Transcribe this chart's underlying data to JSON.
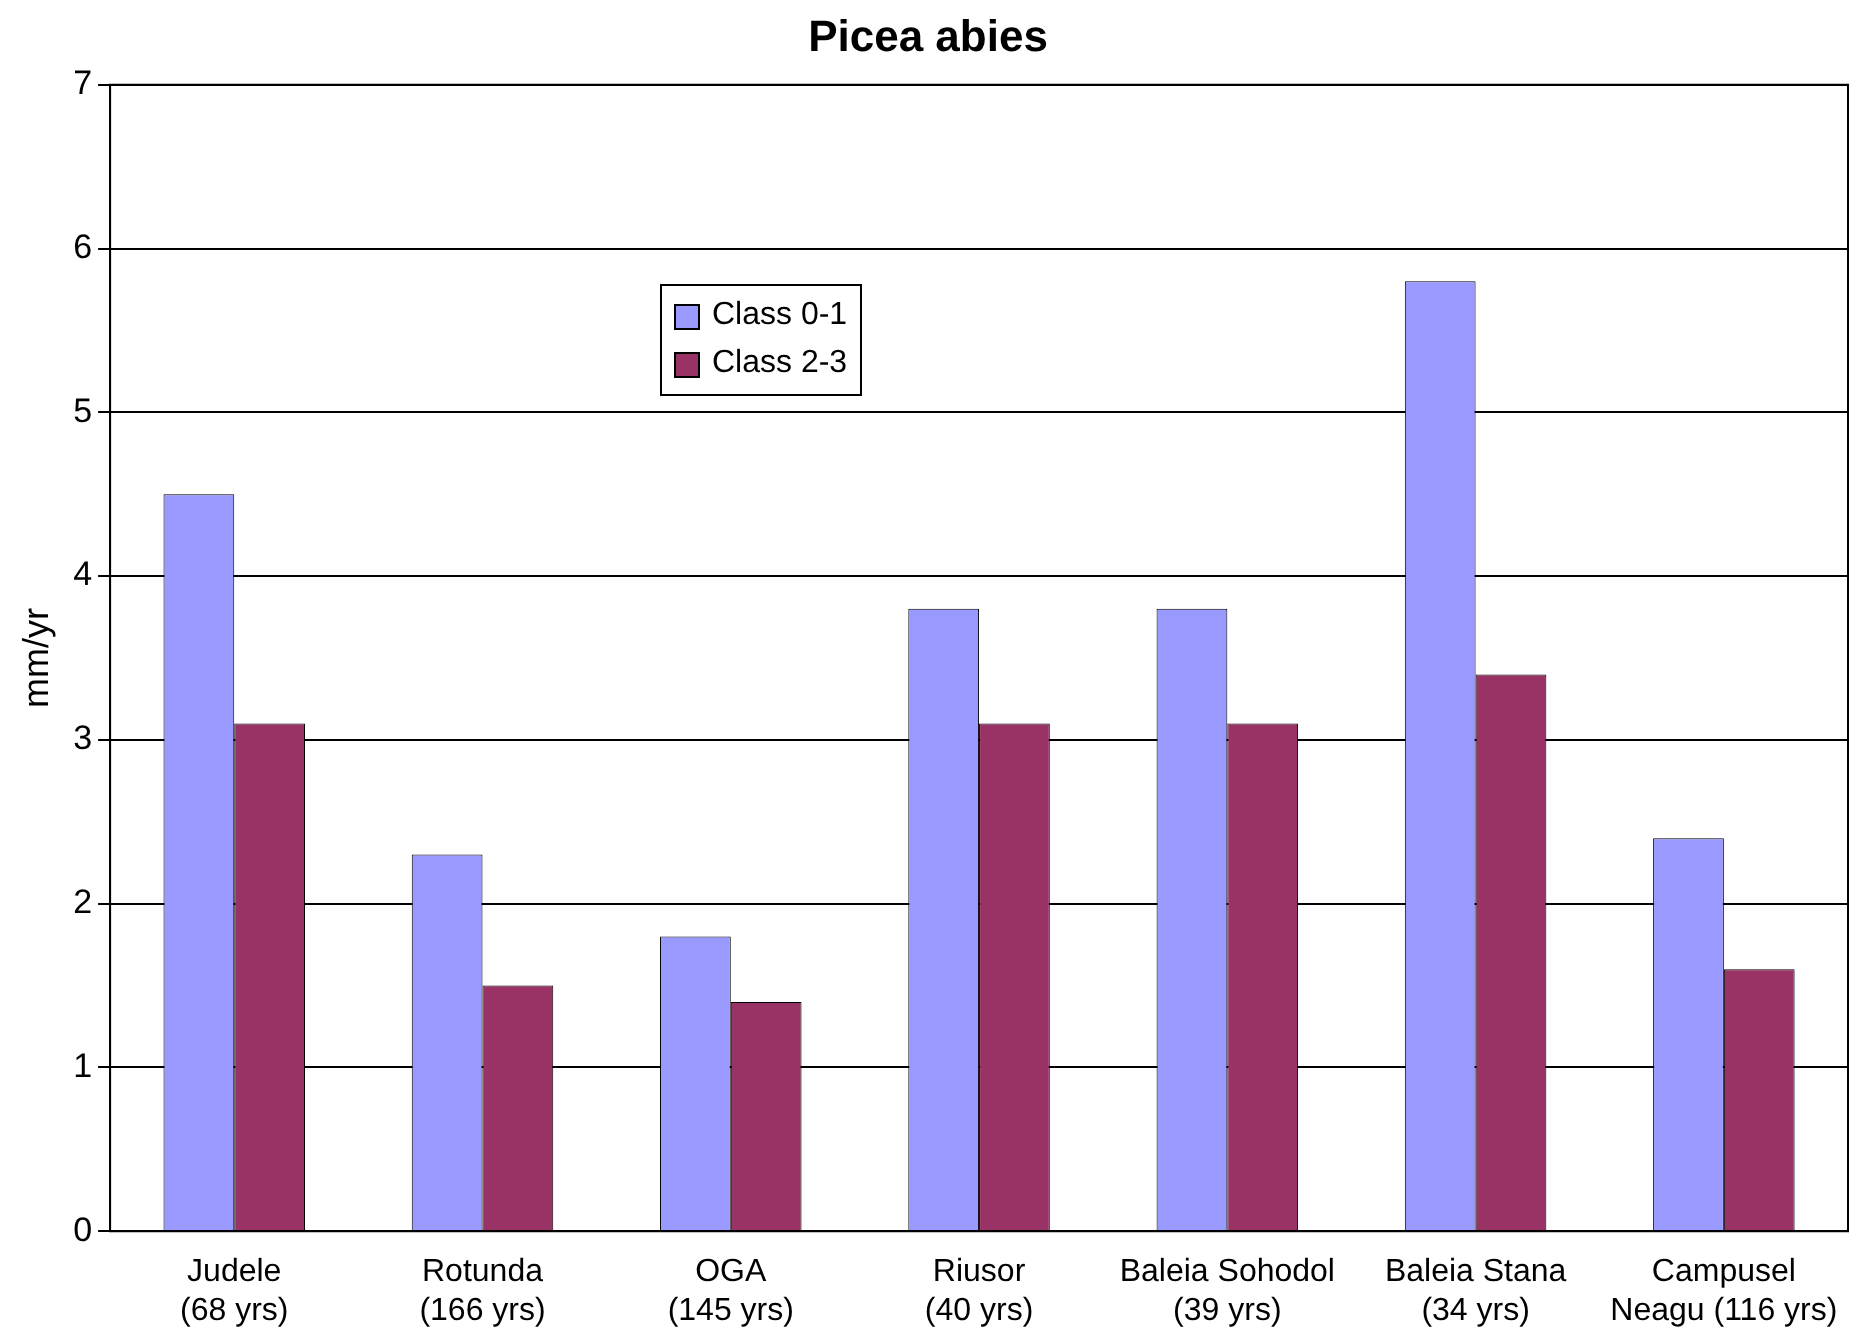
{
  "chart_data": {
    "type": "bar",
    "title": "Picea abies",
    "ylabel": "mm/yr",
    "categories": [
      "Judele\n(68 yrs)",
      "Rotunda\n(166 yrs)",
      "OGA\n(145 yrs)",
      "Riusor\n(40 yrs)",
      "Baleia Sohodol\n(39 yrs)",
      "Baleia Stana\n(34 yrs)",
      "Campusel\nNeagu (116 yrs)"
    ],
    "series": [
      {
        "name": "Class 0-1",
        "color": "#9999ff",
        "values": [
          4.5,
          2.3,
          1.8,
          3.8,
          3.8,
          5.8,
          2.4
        ]
      },
      {
        "name": "Class 2-3",
        "color": "#993366",
        "values": [
          3.1,
          1.5,
          1.4,
          3.1,
          3.1,
          3.4,
          1.6
        ]
      }
    ],
    "ylim": [
      0,
      7
    ],
    "yticks": [
      0,
      1,
      2,
      3,
      4,
      5,
      6,
      7
    ],
    "grid": "y",
    "legend": "top"
  }
}
